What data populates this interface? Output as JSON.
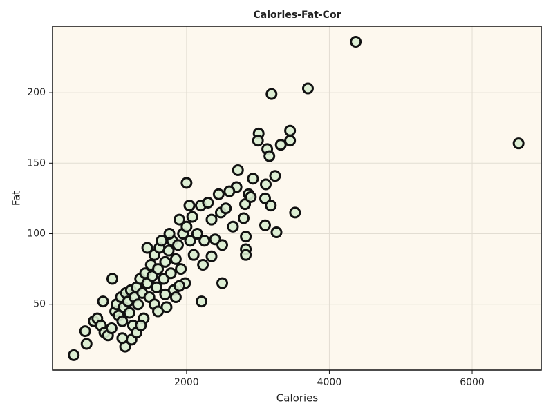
{
  "chart_data": {
    "type": "scatter",
    "title": "Calories-Fat-Cor",
    "x_label": "Calories",
    "y_label": "Fat",
    "x": [
      6650,
      4370,
      3700,
      3190,
      3450,
      3450,
      3010,
      3000,
      3130,
      3160,
      3320,
      3240,
      3110,
      3100,
      3180,
      3520,
      3100,
      3260,
      2930,
      2720,
      2700,
      2820,
      2870,
      2900,
      2800,
      2830,
      2830,
      2830,
      2500,
      2210,
      420,
      600,
      580,
      830,
      960,
      1140,
      1230,
      2000,
      2040,
      2350,
      700,
      750,
      800,
      850,
      900,
      950,
      1000,
      1020,
      1050,
      1080,
      1100,
      1120,
      1150,
      1180,
      1200,
      1220,
      1250,
      1270,
      1300,
      1320,
      1350,
      1380,
      1400,
      1420,
      1450,
      1480,
      1500,
      1520,
      1550,
      1580,
      1600,
      1620,
      1650,
      1680,
      1700,
      1720,
      1750,
      1780,
      1800,
      1820,
      1850,
      1880,
      1900,
      1920,
      1950,
      1980,
      2000,
      2050,
      2080,
      2100,
      2150,
      2200,
      2230,
      2250,
      2300,
      2350,
      2400,
      2450,
      2480,
      2500,
      2550,
      2600,
      2650,
      1850,
      1700,
      1550,
      1300,
      1360,
      1100,
      1600,
      1450,
      1760,
      1900
    ],
    "y": [
      164,
      236,
      203,
      199,
      173,
      166,
      171,
      166,
      160,
      155,
      163,
      141,
      135,
      125,
      120,
      115,
      106,
      101,
      139,
      145,
      133,
      121,
      128,
      126,
      111,
      98,
      89,
      85,
      65,
      52,
      14,
      22,
      31,
      52,
      68,
      20,
      25,
      136,
      120,
      84,
      38,
      40,
      35,
      30,
      28,
      33,
      45,
      50,
      42,
      55,
      38,
      48,
      58,
      52,
      44,
      60,
      35,
      55,
      62,
      50,
      68,
      58,
      40,
      72,
      65,
      55,
      78,
      70,
      85,
      62,
      75,
      90,
      95,
      68,
      80,
      48,
      88,
      72,
      95,
      60,
      82,
      92,
      110,
      75,
      100,
      65,
      105,
      95,
      112,
      85,
      100,
      120,
      78,
      95,
      122,
      110,
      96,
      128,
      115,
      92,
      118,
      130,
      105,
      55,
      57,
      50,
      30,
      35,
      26,
      45,
      90,
      100,
      63
    ],
    "color": "#d8eccf",
    "edge_color": "#111111",
    "xlim": [
      123,
      6968
    ],
    "ylim": [
      3.4,
      247
    ],
    "xticks": [
      2000,
      4000,
      6000
    ],
    "yticks": [
      50,
      100,
      150,
      200
    ],
    "grid": true
  }
}
